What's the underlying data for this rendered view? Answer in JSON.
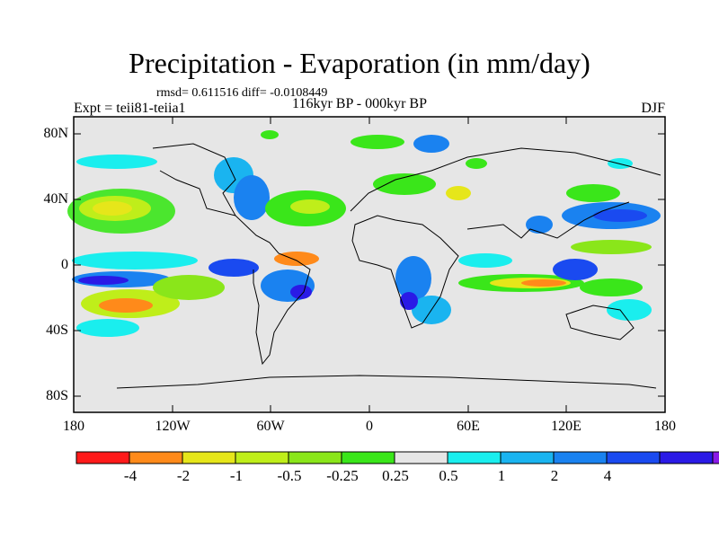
{
  "title": "Precipitation - Evaporation (in mm/day)",
  "stats": "rmsd= 0.611516 diff= -0.0108449",
  "experiment": "Expt = teii81-teiia1",
  "period": "116kyr BP - 000kyr BP",
  "season": "DJF",
  "lat_ticks": [
    "80N",
    "40N",
    "0",
    "40S",
    "80S"
  ],
  "lon_ticks": [
    "180",
    "120W",
    "60W",
    "0",
    "60E",
    "120E",
    "180"
  ],
  "colorbar": {
    "colors": [
      "#ff1a1a",
      "#ff8a1a",
      "#e6e61a",
      "#bfee1a",
      "#8ae61a",
      "#3ae61a",
      "#e6e6e6",
      "#1aeeee",
      "#1ab4f0",
      "#1a82f0",
      "#1a4af0",
      "#2a1ae6",
      "#8a1ae6"
    ],
    "labels": [
      "-4",
      "-2",
      "-1",
      "-0.5",
      "-0.25",
      "0.25",
      "0.5",
      "1",
      "2",
      "4"
    ]
  }
}
